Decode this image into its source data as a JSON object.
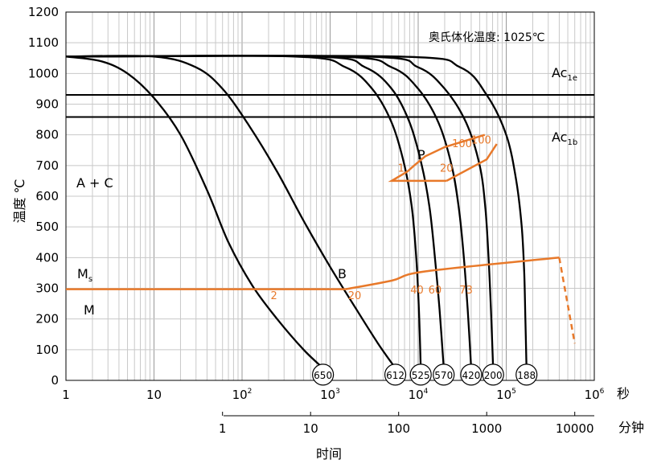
{
  "chart_data": {
    "type": "line",
    "title": "",
    "ylabel": "温度 ℃",
    "xlabel": "时间",
    "x_unit_seconds": "秒",
    "x_unit_minutes": "分钟",
    "x_scale": "log",
    "xlim": [
      1,
      1000000
    ],
    "ylim": [
      0,
      1200
    ],
    "grid": true,
    "y_ticks": [
      "0",
      "100",
      "200",
      "300",
      "400",
      "500",
      "600",
      "700",
      "800",
      "900",
      "1000",
      "1100",
      "1200"
    ],
    "x_ticks_seconds": [
      {
        "base": "1",
        "exp": ""
      },
      {
        "base": "10",
        "exp": ""
      },
      {
        "base": "10",
        "exp": "2"
      },
      {
        "base": "10",
        "exp": "3"
      },
      {
        "base": "10",
        "exp": "4"
      },
      {
        "base": "10",
        "exp": "5"
      },
      {
        "base": "10",
        "exp": "6"
      }
    ],
    "x_ticks_minutes": [
      "1",
      "10",
      "100",
      "1000",
      "10000"
    ],
    "austenitizing_temperature": "奥氏体化温度: 1025℃",
    "horizontal_lines": [
      {
        "name": "Ac1e",
        "label_main": "Ac",
        "label_sub": "1e",
        "y": 930
      },
      {
        "name": "Ac1b",
        "label_main": "Ac",
        "label_sub": "1b",
        "y": 858
      }
    ],
    "region_labels": {
      "austenite_carbide": "A + C",
      "martensite_start_main": "M",
      "martensite_start_sub": "s",
      "martensite": "M",
      "pearlite": "P",
      "bainite": "B"
    },
    "cooling_curves": [
      {
        "hardness": "650",
        "points": [
          [
            1,
            1055
          ],
          [
            2.5,
            1040
          ],
          [
            5,
            1000
          ],
          [
            10,
            920
          ],
          [
            20,
            800
          ],
          [
            40,
            620
          ],
          [
            70,
            450
          ],
          [
            130,
            310
          ],
          [
            250,
            200
          ],
          [
            500,
            100
          ],
          [
            830,
            40
          ]
        ]
      },
      {
        "hardness": "612",
        "points": [
          [
            1,
            1055
          ],
          [
            10,
            1055
          ],
          [
            30,
            1020
          ],
          [
            60,
            950
          ],
          [
            120,
            830
          ],
          [
            250,
            680
          ],
          [
            500,
            520
          ],
          [
            1000,
            370
          ],
          [
            2000,
            230
          ],
          [
            3500,
            120
          ],
          [
            5500,
            40
          ]
        ]
      },
      {
        "hardness": "525",
        "points": [
          [
            1,
            1055
          ],
          [
            400,
            1055
          ],
          [
            1500,
            1020
          ],
          [
            3000,
            950
          ],
          [
            5000,
            840
          ],
          [
            7000,
            700
          ],
          [
            8500,
            560
          ],
          [
            9500,
            400
          ],
          [
            10200,
            230
          ],
          [
            10700,
            40
          ]
        ]
      },
      {
        "hardness": "570",
        "points": [
          [
            1,
            1055
          ],
          [
            700,
            1055
          ],
          [
            2500,
            1020
          ],
          [
            5000,
            950
          ],
          [
            8000,
            840
          ],
          [
            11000,
            700
          ],
          [
            13500,
            560
          ],
          [
            15500,
            400
          ],
          [
            17500,
            230
          ],
          [
            19500,
            40
          ]
        ]
      },
      {
        "hardness": "420",
        "points": [
          [
            1,
            1055
          ],
          [
            1200,
            1055
          ],
          [
            5000,
            1020
          ],
          [
            10000,
            950
          ],
          [
            17000,
            840
          ],
          [
            24000,
            700
          ],
          [
            29000,
            560
          ],
          [
            33000,
            400
          ],
          [
            36500,
            230
          ],
          [
            40000,
            40
          ]
        ]
      },
      {
        "hardness": "200",
        "points": [
          [
            1,
            1055
          ],
          [
            2500,
            1055
          ],
          [
            10000,
            1020
          ],
          [
            20000,
            950
          ],
          [
            35000,
            840
          ],
          [
            50000,
            700
          ],
          [
            58000,
            560
          ],
          [
            63000,
            400
          ],
          [
            67000,
            230
          ],
          [
            71000,
            40
          ]
        ]
      },
      {
        "hardness": "188",
        "points": [
          [
            1,
            1055
          ],
          [
            6000,
            1055
          ],
          [
            30000,
            1020
          ],
          [
            60000,
            930
          ],
          [
            100000,
            800
          ],
          [
            130000,
            650
          ],
          [
            150000,
            500
          ],
          [
            160000,
            350
          ],
          [
            165000,
            200
          ],
          [
            170000,
            40
          ]
        ]
      }
    ],
    "pearlite_region": {
      "lower_boundary": [
        [
          57000,
          800
        ],
        [
          20000,
          760
        ],
        [
          12000,
          730
        ],
        [
          9000,
          700
        ],
        [
          7500,
          680
        ],
        [
          5000,
          650
        ],
        [
          16000,
          650
        ],
        [
          21000,
          650
        ],
        [
          60000,
          720
        ],
        [
          78000,
          770
        ]
      ],
      "labels": [
        {
          "text": "1",
          "x": 6400,
          "y": 680
        },
        {
          "text": "20",
          "x": 21000,
          "y": 680
        },
        {
          "text": "100",
          "x": 31500,
          "y": 760
        },
        {
          "text": "100",
          "x": 52000,
          "y": 772
        }
      ]
    },
    "bainite_line": {
      "ms_line": [
        [
          1,
          297
        ],
        [
          1500,
          297
        ]
      ],
      "upper": [
        [
          1500,
          297
        ],
        [
          5000,
          325
        ],
        [
          12000,
          355
        ],
        [
          400000,
          400
        ]
      ],
      "dashed": [
        [
          400000,
          400
        ],
        [
          600000,
          120
        ]
      ],
      "labels": [
        {
          "text": "2",
          "x": 230,
          "y": 265
        },
        {
          "text": "20",
          "x": 1900,
          "y": 265
        },
        {
          "text": "40",
          "x": 9700,
          "y": 283
        },
        {
          "text": "60",
          "x": 15500,
          "y": 283
        },
        {
          "text": "73",
          "x": 35000,
          "y": 283
        }
      ]
    }
  }
}
